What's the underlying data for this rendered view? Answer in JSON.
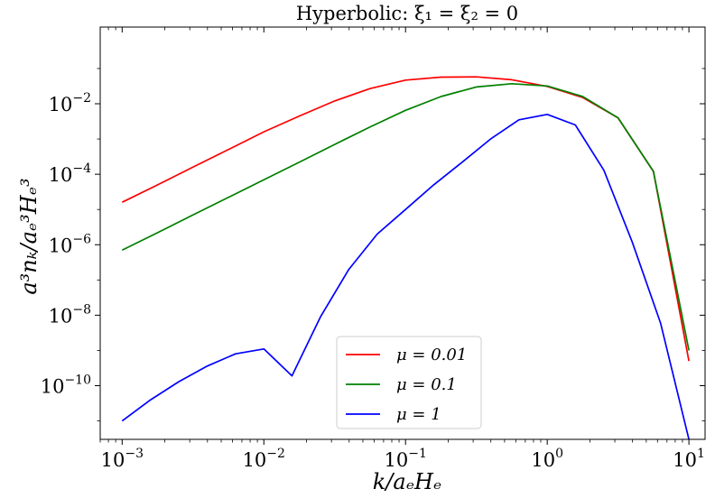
{
  "chart_data": {
    "type": "line",
    "title": "Hyperbolic: ξ₁ = ξ₂ = 0",
    "xlabel": "k/aₑHₑ",
    "ylabel": "a³nₖ/aₑ³Hₑ³",
    "x_scale": "log",
    "y_scale": "log",
    "xlim": [
      0.0007,
      13
    ],
    "ylim": [
      3e-12,
      1.5
    ],
    "x_ticks": [
      {
        "value": 0.001,
        "base": "10",
        "exp": "−3"
      },
      {
        "value": 0.01,
        "base": "10",
        "exp": "−2"
      },
      {
        "value": 0.1,
        "base": "10",
        "exp": "−1"
      },
      {
        "value": 1,
        "base": "10",
        "exp": "0"
      },
      {
        "value": 10,
        "base": "10",
        "exp": "1"
      }
    ],
    "y_ticks": [
      {
        "value": 1e-10,
        "base": "10",
        "exp": "−10"
      },
      {
        "value": 1e-08,
        "base": "10",
        "exp": "−8"
      },
      {
        "value": 1e-06,
        "base": "10",
        "exp": "−6"
      },
      {
        "value": 0.0001,
        "base": "10",
        "exp": "−4"
      },
      {
        "value": 0.01,
        "base": "10",
        "exp": "−2"
      }
    ],
    "grid": false,
    "legend_position": "lower-center",
    "series": [
      {
        "name": "μ = 0.01",
        "color": "#ff0000",
        "x": [
          0.001,
          0.00178,
          0.00316,
          0.00562,
          0.01,
          0.0178,
          0.0316,
          0.0562,
          0.1,
          0.178,
          0.316,
          0.562,
          1,
          1.78,
          3.16,
          5.62,
          10
        ],
        "y": [
          1.6e-05,
          5e-05,
          0.00016,
          0.0005,
          0.0016,
          0.0045,
          0.012,
          0.027,
          0.047,
          0.057,
          0.058,
          0.048,
          0.031,
          0.015,
          0.004,
          0.00012,
          5e-10
        ]
      },
      {
        "name": "μ = 0.1",
        "color": "#008000",
        "x": [
          0.001,
          0.00178,
          0.00316,
          0.00562,
          0.01,
          0.0178,
          0.0316,
          0.0562,
          0.1,
          0.178,
          0.316,
          0.562,
          1,
          1.78,
          3.16,
          5.62,
          10
        ],
        "y": [
          7e-07,
          2.2e-06,
          7e-06,
          2.2e-05,
          7e-05,
          0.00022,
          0.0007,
          0.0022,
          0.0065,
          0.016,
          0.03,
          0.037,
          0.032,
          0.016,
          0.004,
          0.00012,
          1e-09
        ]
      },
      {
        "name": "μ = 1",
        "color": "#0000ff",
        "x": [
          0.001,
          0.00159,
          0.00251,
          0.00398,
          0.00631,
          0.01,
          0.0158,
          0.0251,
          0.0398,
          0.0631,
          0.1,
          0.158,
          0.251,
          0.398,
          0.631,
          1,
          1.58,
          2.51,
          3.98,
          6.31,
          10
        ],
        "y": [
          1e-11,
          4e-11,
          1.3e-10,
          3.6e-10,
          8e-10,
          1.1e-09,
          1.9e-10,
          9e-09,
          2e-07,
          2e-06,
          1e-05,
          5e-05,
          0.00022,
          0.001,
          0.0035,
          0.005,
          0.0025,
          0.00013,
          1.2e-06,
          6e-09,
          0
        ]
      }
    ]
  }
}
